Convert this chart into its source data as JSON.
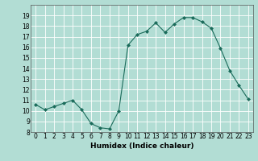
{
  "x": [
    0,
    1,
    2,
    3,
    4,
    5,
    6,
    7,
    8,
    9,
    10,
    11,
    12,
    13,
    14,
    15,
    16,
    17,
    18,
    19,
    20,
    21,
    22,
    23
  ],
  "y": [
    10.6,
    10.1,
    10.4,
    10.7,
    11.0,
    10.1,
    8.8,
    8.4,
    8.3,
    10.0,
    16.2,
    17.2,
    17.5,
    18.3,
    17.4,
    18.2,
    18.8,
    18.8,
    18.4,
    17.8,
    15.9,
    13.8,
    12.4,
    11.1
  ],
  "line_color": "#1a6b5a",
  "marker": "D",
  "marker_size": 2,
  "background_color": "#b2ddd4",
  "grid_color": "#ffffff",
  "xlabel": "Humidex (Indice chaleur)",
  "ylim": [
    8,
    20
  ],
  "xlim": [
    -0.5,
    23.5
  ],
  "yticks": [
    8,
    9,
    10,
    11,
    12,
    13,
    14,
    15,
    16,
    17,
    18,
    19
  ],
  "xticks": [
    0,
    1,
    2,
    3,
    4,
    5,
    6,
    7,
    8,
    9,
    10,
    11,
    12,
    13,
    14,
    15,
    16,
    17,
    18,
    19,
    20,
    21,
    22,
    23
  ],
  "xtick_labels": [
    "0",
    "1",
    "2",
    "3",
    "4",
    "5",
    "6",
    "7",
    "8",
    "9",
    "10",
    "11",
    "12",
    "13",
    "14",
    "15",
    "16",
    "17",
    "18",
    "19",
    "20",
    "21",
    "22",
    "23"
  ],
  "xlabel_fontsize": 6.5,
  "tick_fontsize": 5.5,
  "title": ""
}
